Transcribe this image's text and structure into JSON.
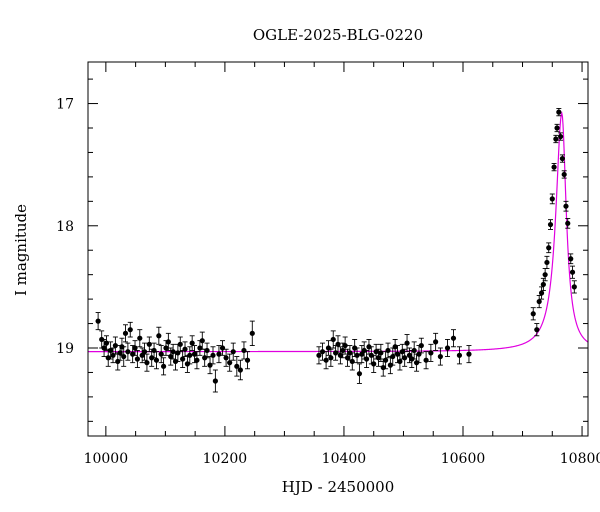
{
  "chart_data": {
    "type": "scatter",
    "title": "OGLE-2025-BLG-0220",
    "xlabel": "HJD - 2450000",
    "ylabel": "I magnitude",
    "xlim": [
      9970,
      10810
    ],
    "ylim": [
      19.72,
      16.66
    ],
    "y_inverted": true,
    "grid": false,
    "x_ticks": [
      10000,
      10200,
      10400,
      10600,
      10800
    ],
    "y_ticks": [
      17,
      18,
      19
    ],
    "x_minor_step": 50,
    "y_minor_step": 0.2,
    "model_color": "#e000e0",
    "point_color": "#000000",
    "model": {
      "baseline_mag": 19.03,
      "t0": 10766,
      "peak_mag": 17.08,
      "t_rise_width": 12,
      "t_fall_width": 9
    },
    "series": [
      {
        "points": [
          [
            9987,
            18.78,
            0.07
          ],
          [
            9993,
            18.93,
            0.07
          ],
          [
            9997,
            19.0,
            0.07
          ],
          [
            10001,
            18.96,
            0.06
          ],
          [
            10004,
            19.08,
            0.07
          ],
          [
            10008,
            19.02,
            0.07
          ],
          [
            10012,
            19.06,
            0.06
          ],
          [
            10016,
            18.98,
            0.07
          ],
          [
            10020,
            19.11,
            0.07
          ],
          [
            10024,
            19.04,
            0.06
          ],
          [
            10027,
            18.99,
            0.07
          ],
          [
            10030,
            19.07,
            0.08
          ],
          [
            10033,
            18.88,
            0.07
          ],
          [
            10037,
            19.03,
            0.07
          ],
          [
            10041,
            18.85,
            0.06
          ],
          [
            10045,
            19.05,
            0.07
          ],
          [
            10049,
            19.0,
            0.06
          ],
          [
            10053,
            19.09,
            0.07
          ],
          [
            10057,
            18.92,
            0.07
          ],
          [
            10061,
            19.06,
            0.06
          ],
          [
            10065,
            19.03,
            0.07
          ],
          [
            10069,
            19.12,
            0.07
          ],
          [
            10073,
            18.97,
            0.06
          ],
          [
            10077,
            19.08,
            0.07
          ],
          [
            10081,
            19.02,
            0.06
          ],
          [
            10085,
            19.1,
            0.07
          ],
          [
            10089,
            18.9,
            0.07
          ],
          [
            10093,
            19.05,
            0.07
          ],
          [
            10097,
            19.15,
            0.07
          ],
          [
            10101,
            19.0,
            0.06
          ],
          [
            10105,
            18.95,
            0.07
          ],
          [
            10109,
            19.07,
            0.07
          ],
          [
            10113,
            19.03,
            0.06
          ],
          [
            10117,
            19.11,
            0.07
          ],
          [
            10121,
            19.04,
            0.07
          ],
          [
            10125,
            18.97,
            0.06
          ],
          [
            10129,
            19.09,
            0.07
          ],
          [
            10133,
            19.01,
            0.06
          ],
          [
            10137,
            19.13,
            0.07
          ],
          [
            10141,
            19.06,
            0.07
          ],
          [
            10145,
            18.96,
            0.06
          ],
          [
            10149,
            19.05,
            0.07
          ],
          [
            10153,
            19.1,
            0.07
          ],
          [
            10158,
            19.0,
            0.06
          ],
          [
            10162,
            18.94,
            0.07
          ],
          [
            10166,
            19.08,
            0.07
          ],
          [
            10170,
            19.02,
            0.06
          ],
          [
            10175,
            19.14,
            0.07
          ],
          [
            10180,
            19.06,
            0.07
          ],
          [
            10184,
            19.27,
            0.09
          ],
          [
            10190,
            19.05,
            0.07
          ],
          [
            10196,
            19.0,
            0.06
          ],
          [
            10202,
            19.08,
            0.07
          ],
          [
            10208,
            19.12,
            0.07
          ],
          [
            10214,
            19.03,
            0.07
          ],
          [
            10220,
            19.15,
            0.08
          ],
          [
            10226,
            19.18,
            0.08
          ],
          [
            10232,
            19.02,
            0.07
          ],
          [
            10238,
            19.1,
            0.07
          ],
          [
            10246,
            18.88,
            0.1
          ],
          [
            10358,
            19.06,
            0.07
          ],
          [
            10364,
            19.03,
            0.07
          ],
          [
            10370,
            19.1,
            0.07
          ],
          [
            10374,
            19.0,
            0.06
          ],
          [
            10378,
            19.08,
            0.07
          ],
          [
            10382,
            18.93,
            0.07
          ],
          [
            10386,
            19.04,
            0.06
          ],
          [
            10390,
            18.97,
            0.07
          ],
          [
            10394,
            19.06,
            0.07
          ],
          [
            10398,
            19.02,
            0.06
          ],
          [
            10402,
            18.98,
            0.07
          ],
          [
            10406,
            19.08,
            0.07
          ],
          [
            10410,
            19.04,
            0.06
          ],
          [
            10414,
            19.11,
            0.07
          ],
          [
            10418,
            19.0,
            0.07
          ],
          [
            10422,
            19.06,
            0.06
          ],
          [
            10426,
            19.21,
            0.08
          ],
          [
            10430,
            19.05,
            0.07
          ],
          [
            10434,
            19.02,
            0.07
          ],
          [
            10438,
            19.09,
            0.07
          ],
          [
            10442,
            18.99,
            0.06
          ],
          [
            10446,
            19.06,
            0.07
          ],
          [
            10450,
            19.13,
            0.07
          ],
          [
            10454,
            19.03,
            0.06
          ],
          [
            10458,
            19.08,
            0.07
          ],
          [
            10462,
            19.04,
            0.07
          ],
          [
            10466,
            19.16,
            0.07
          ],
          [
            10470,
            19.1,
            0.07
          ],
          [
            10474,
            19.02,
            0.06
          ],
          [
            10478,
            19.14,
            0.07
          ],
          [
            10482,
            19.07,
            0.07
          ],
          [
            10486,
            18.99,
            0.06
          ],
          [
            10490,
            19.05,
            0.07
          ],
          [
            10494,
            19.11,
            0.07
          ],
          [
            10498,
            19.03,
            0.06
          ],
          [
            10502,
            19.08,
            0.07
          ],
          [
            10506,
            18.96,
            0.07
          ],
          [
            10510,
            19.06,
            0.06
          ],
          [
            10514,
            19.09,
            0.07
          ],
          [
            10518,
            19.02,
            0.07
          ],
          [
            10522,
            19.12,
            0.07
          ],
          [
            10526,
            19.05,
            0.07
          ],
          [
            10530,
            18.98,
            0.06
          ],
          [
            10538,
            19.1,
            0.07
          ],
          [
            10546,
            19.04,
            0.07
          ],
          [
            10554,
            18.95,
            0.07
          ],
          [
            10562,
            19.07,
            0.07
          ],
          [
            10574,
            19.0,
            0.07
          ],
          [
            10584,
            18.92,
            0.07
          ],
          [
            10594,
            19.06,
            0.07
          ],
          [
            10610,
            19.05,
            0.07
          ],
          [
            10718,
            18.72,
            0.05
          ],
          [
            10724,
            18.85,
            0.05
          ],
          [
            10728,
            18.62,
            0.05
          ],
          [
            10732,
            18.55,
            0.05
          ],
          [
            10735,
            18.48,
            0.05
          ],
          [
            10738,
            18.4,
            0.05
          ],
          [
            10741,
            18.3,
            0.05
          ],
          [
            10744,
            18.18,
            0.04
          ],
          [
            10747,
            17.99,
            0.04
          ],
          [
            10750,
            17.78,
            0.04
          ],
          [
            10753,
            17.52,
            0.03
          ],
          [
            10756,
            17.29,
            0.03
          ],
          [
            10758,
            17.2,
            0.03
          ],
          [
            10761,
            17.07,
            0.03
          ],
          [
            10764,
            17.27,
            0.03
          ],
          [
            10767,
            17.45,
            0.03
          ],
          [
            10770,
            17.58,
            0.03
          ],
          [
            10773,
            17.84,
            0.04
          ],
          [
            10776,
            17.98,
            0.04
          ],
          [
            10781,
            18.27,
            0.04
          ],
          [
            10784,
            18.38,
            0.05
          ],
          [
            10787,
            18.5,
            0.05
          ]
        ]
      }
    ]
  }
}
